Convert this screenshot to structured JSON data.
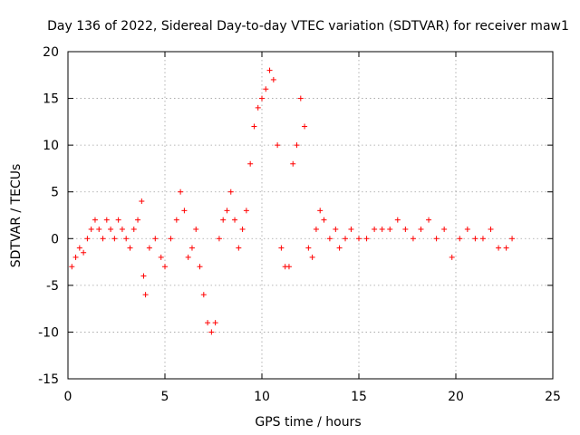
{
  "chart_data": {
    "type": "scatter",
    "title": "Day 136 of 2022, Sidereal Day-to-day VTEC variation (SDTVAR) for receiver maw1",
    "xlabel": "GPS time / hours",
    "ylabel": "SDTVAR / TECUs",
    "xlim": [
      0,
      25
    ],
    "ylim": [
      -15,
      20
    ],
    "xticks": [
      "0",
      "5",
      "10",
      "15",
      "20",
      "25"
    ],
    "yticks": [
      "-15",
      "-10",
      "-5",
      "0",
      "5",
      "10",
      "15",
      "20"
    ],
    "grid": true,
    "marker": "+",
    "color": "#ff0000",
    "series": [
      {
        "name": "SDTVAR",
        "x": [
          0.2,
          0.4,
          0.6,
          0.8,
          1.0,
          1.2,
          1.4,
          1.6,
          1.8,
          2.0,
          2.2,
          2.4,
          2.6,
          2.8,
          3.0,
          3.2,
          3.4,
          3.6,
          3.8,
          3.9,
          4.0,
          4.2,
          4.5,
          4.8,
          5.0,
          5.3,
          5.6,
          5.8,
          6.0,
          6.2,
          6.4,
          6.6,
          6.8,
          7.0,
          7.2,
          7.4,
          7.6,
          7.8,
          8.0,
          8.2,
          8.4,
          8.6,
          8.8,
          9.0,
          9.2,
          9.4,
          9.6,
          9.8,
          10.0,
          10.2,
          10.4,
          10.6,
          10.8,
          11.0,
          11.2,
          11.4,
          11.6,
          11.8,
          12.0,
          12.2,
          12.4,
          12.6,
          12.8,
          13.0,
          13.2,
          13.5,
          13.8,
          14.0,
          14.3,
          14.6,
          15.0,
          15.4,
          15.8,
          16.2,
          16.6,
          17.0,
          17.4,
          17.8,
          18.2,
          18.6,
          19.0,
          19.4,
          19.8,
          20.2,
          20.6,
          21.0,
          21.4,
          21.8,
          22.2,
          22.6,
          22.9
        ],
        "y": [
          -3,
          -2,
          -1,
          -1.5,
          0,
          1,
          2,
          1,
          0,
          2,
          1,
          0,
          2,
          1,
          0,
          -1,
          1,
          2,
          4,
          -4,
          -6,
          -1,
          0,
          -2,
          -3,
          0,
          2,
          5,
          3,
          -2,
          -1,
          1,
          -3,
          -6,
          -9,
          -10,
          -9,
          0,
          2,
          3,
          5,
          2,
          -1,
          1,
          3,
          8,
          12,
          14,
          15,
          16,
          18,
          17,
          10,
          -1,
          -3,
          -3,
          8,
          10,
          15,
          12,
          -1,
          -2,
          1,
          3,
          2,
          0,
          1,
          -1,
          0,
          1,
          0,
          0,
          1,
          1,
          1,
          2,
          1,
          0,
          1,
          2,
          0,
          1,
          -2,
          0,
          1,
          0,
          0,
          1,
          -1,
          -1,
          0
        ]
      }
    ]
  }
}
